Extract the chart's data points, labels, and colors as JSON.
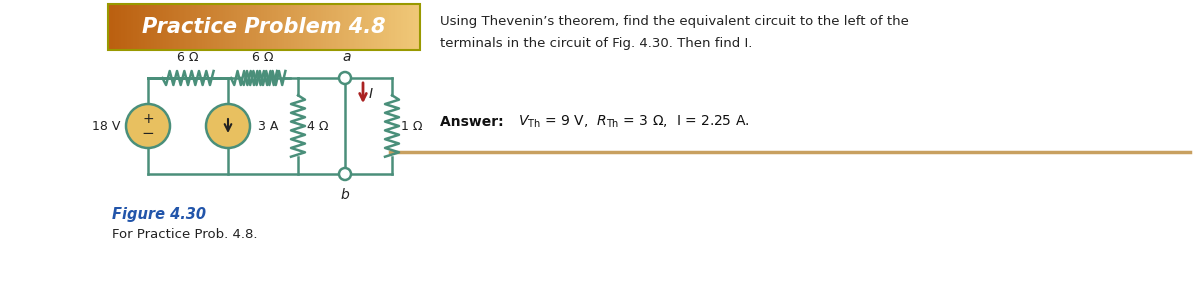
{
  "title": "Practice Problem 4.8",
  "title_bg_left": "#C87010",
  "title_bg_right": "#F0C060",
  "title_text_color": "#FFFFFF",
  "title_fontsize": 15,
  "desc_line1": "Using Thevenin’s theorem, find the equivalent circuit to the left of the",
  "desc_line2": "terminals in the circuit of Fig. 4.30. Then find I.",
  "answer_bold": "Answer:",
  "answer_vth": "V",
  "answer_body": " = 9 V, R",
  "answer_tail": " = 3 Ω, I = 2.25 A.",
  "fig_caption_bold": "Figure 4.30",
  "fig_caption_plain": "For Practice Prob. 4.8.",
  "wire_color": "#4A8F7A",
  "vsrc_fill": "#E8C060",
  "csrc_fill": "#E8C060",
  "arrow_color": "#AA2222",
  "text_color": "#222222",
  "fig_caption_color": "#2255AA",
  "answer_bold_color": "#111111",
  "separator_color": "#C8A060",
  "bg_color": "#FFFFFF",
  "title_border_color": "#888820"
}
